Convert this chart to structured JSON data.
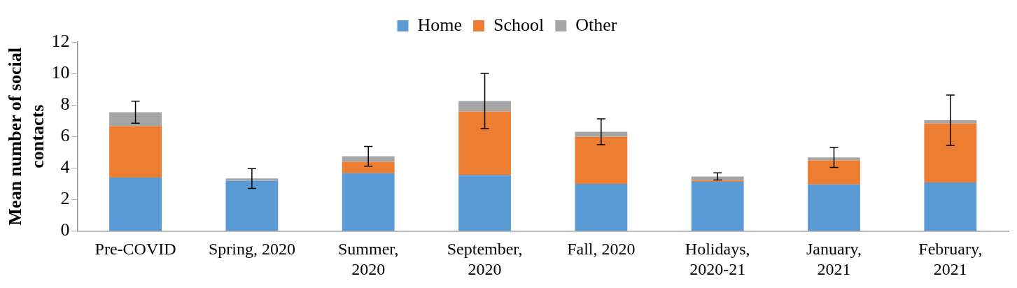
{
  "chart_data": {
    "type": "bar",
    "stacked": true,
    "ylabel": "Mean number of social contacts",
    "categories": [
      "Pre-COVID",
      "Spring, 2020",
      "Summer, 2020",
      "September, 2020",
      "Fall, 2020",
      "Holidays, 2020-21",
      "January, 2021",
      "February, 2021"
    ],
    "series": [
      {
        "name": "Home",
        "color": "#5b9bd5",
        "values": [
          3.39,
          3.19,
          3.67,
          3.55,
          2.99,
          3.12,
          2.96,
          3.08
        ]
      },
      {
        "name": "School",
        "color": "#ed7d31",
        "values": [
          3.27,
          null,
          0.72,
          4.03,
          2.99,
          0.08,
          1.52,
          3.74
        ]
      },
      {
        "name": "Other",
        "color": "#a5a5a5",
        "values": [
          0.88,
          0.14,
          0.35,
          0.67,
          0.32,
          0.26,
          0.19,
          0.21
        ],
        "errors": [
          0.7,
          0.63,
          0.63,
          1.75,
          0.82,
          0.23,
          0.64,
          1.6
        ]
      }
    ],
    "ylim": [
      0,
      12
    ],
    "yticks": [
      0,
      2,
      4,
      6,
      8,
      10,
      12
    ],
    "grid": false,
    "legend": "top"
  }
}
